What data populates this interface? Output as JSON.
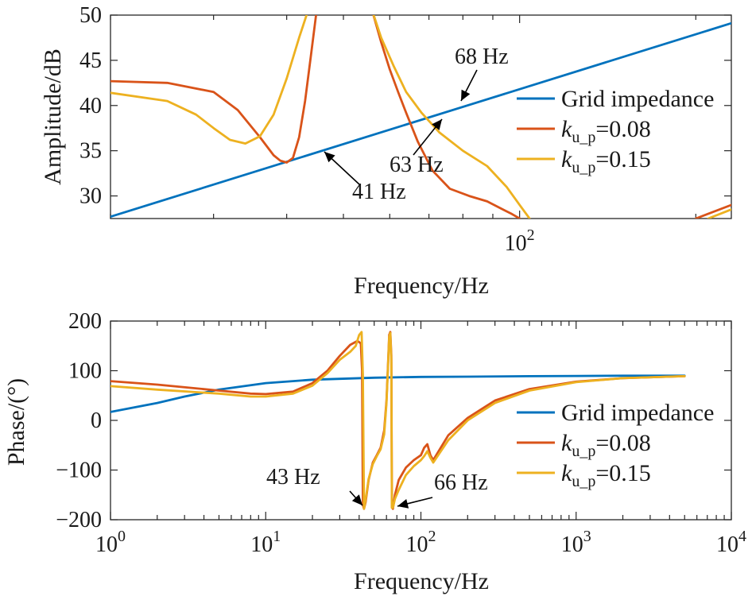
{
  "colors": {
    "grid": "#0072BD",
    "k008": "#D95319",
    "k015": "#EDB120",
    "axis": "#262626"
  },
  "chart_data": [
    {
      "type": "line",
      "xscale": "log",
      "xlim": [
        20,
        230
      ],
      "ylim": [
        27.5,
        50
      ],
      "xlabel": "Frequency/Hz",
      "ylabel": "Amplitude/dB",
      "xtick_labels": [
        {
          "x": 100,
          "base": "10",
          "exp": "2"
        }
      ],
      "ytick_labels": [
        "30",
        "35",
        "40",
        "45",
        "50"
      ],
      "ytick_values": [
        30,
        35,
        40,
        45,
        50
      ],
      "legend": {
        "placement": "right",
        "entries": [
          {
            "series": 0,
            "text": "Grid impedance"
          },
          {
            "series": 1,
            "prefix": "k",
            "sub": "u_p",
            "suffix": "=0.08"
          },
          {
            "series": 2,
            "prefix": "k",
            "sub": "u_p",
            "suffix": "=0.15"
          }
        ]
      },
      "annotations": [
        {
          "label": "41 Hz",
          "x": 41,
          "y": 35.4
        },
        {
          "label": "63 Hz",
          "x": 63,
          "y": 38.7
        },
        {
          "label": "68 Hz",
          "x": 68,
          "y": 39.3
        }
      ],
      "series": [
        {
          "color": "grid",
          "x": [
            20,
            230
          ],
          "y": [
            27.7,
            49.1
          ]
        },
        {
          "color": "k008",
          "x": [
            20,
            25,
            30,
            33,
            36,
            38,
            39,
            40,
            41,
            42,
            43,
            44,
            45
          ],
          "y": [
            42.7,
            42.5,
            41.5,
            39.5,
            36.5,
            34.5,
            33.9,
            33.7,
            34.2,
            36.5,
            40.5,
            45.5,
            50.5
          ]
        },
        {
          "color": "k008",
          "x": [
            56,
            58,
            60,
            62,
            64,
            67,
            71,
            76,
            82,
            88,
            93,
            97,
            100
          ],
          "y": [
            50.5,
            47,
            44,
            41.5,
            39.2,
            36,
            32.8,
            30.8,
            30,
            29.4,
            28.6,
            28,
            27.5
          ]
        },
        {
          "color": "k008",
          "x": [
            200,
            230
          ],
          "y": [
            27.5,
            29.0
          ]
        },
        {
          "color": "k015",
          "x": [
            20,
            25,
            28,
            30,
            32,
            34,
            36,
            38,
            40,
            42,
            43.5
          ],
          "y": [
            41.4,
            40.5,
            39,
            37.5,
            36.2,
            35.8,
            36.6,
            39,
            43,
            47.5,
            50.5
          ]
        },
        {
          "color": "k015",
          "x": [
            56,
            58,
            61,
            64,
            68,
            73,
            80,
            88,
            95,
            100,
            104
          ],
          "y": [
            50.5,
            47.5,
            44.3,
            41.5,
            39.2,
            37,
            35,
            33.3,
            31,
            29,
            27.5
          ]
        },
        {
          "color": "k015",
          "x": [
            210,
            230
          ],
          "y": [
            27.5,
            28.5
          ]
        }
      ]
    },
    {
      "type": "line",
      "xscale": "log",
      "xlim": [
        1,
        10000
      ],
      "ylim": [
        -200,
        200
      ],
      "xlabel": "Frequency/Hz",
      "ylabel": "Phase/(°)",
      "xtick_labels": [
        {
          "x": 1,
          "base": "10",
          "exp": "0"
        },
        {
          "x": 10,
          "base": "10",
          "exp": "1"
        },
        {
          "x": 100,
          "base": "10",
          "exp": "2"
        },
        {
          "x": 1000,
          "base": "10",
          "exp": "3"
        },
        {
          "x": 10000,
          "base": "10",
          "exp": "4"
        }
      ],
      "ytick_labels": [
        "200",
        "100",
        "0",
        "−100",
        "−200"
      ],
      "ytick_values": [
        200,
        100,
        0,
        -100,
        -200
      ],
      "legend": {
        "placement": "right",
        "entries": [
          {
            "series": 0,
            "text": "Grid impedance"
          },
          {
            "series": 1,
            "prefix": "k",
            "sub": "u_p",
            "suffix": "=0.08"
          },
          {
            "series": 2,
            "prefix": "k",
            "sub": "u_p",
            "suffix": "=0.15"
          }
        ]
      },
      "annotations": [
        {
          "label": "43 Hz",
          "x": 43,
          "y": -180
        },
        {
          "label": "66 Hz",
          "x": 66,
          "y": -180
        }
      ],
      "series": [
        {
          "color": "grid",
          "x": [
            1,
            2,
            3,
            5,
            10,
            20,
            50,
            100,
            200,
            500,
            1000,
            2000,
            5000
          ],
          "y": [
            17,
            35,
            48,
            62,
            75,
            82,
            86,
            87.5,
            88,
            89,
            89.5,
            90,
            90
          ]
        },
        {
          "color": "k008",
          "x": [
            1,
            2,
            5,
            8,
            10,
            15,
            20,
            25,
            30,
            35,
            39,
            41,
            41.8,
            42.3,
            43,
            44,
            46,
            49,
            52,
            55,
            58,
            60,
            61.5,
            62.5,
            63.5,
            64.5,
            65,
            66,
            68,
            72,
            80,
            90,
            100,
            105,
            110,
            115,
            120,
            150,
            200,
            300,
            500,
            1000,
            2000,
            5000
          ],
          "y": [
            79,
            72,
            60,
            54,
            53,
            58,
            75,
            100,
            130,
            152,
            160,
            155,
            100,
            -170,
            -178,
            -165,
            -120,
            -85,
            -70,
            -55,
            -20,
            40,
            120,
            172,
            178,
            130,
            -175,
            -178,
            -150,
            -120,
            -95,
            -80,
            -70,
            -55,
            -48,
            -70,
            -80,
            -30,
            5,
            40,
            63,
            78,
            85,
            89
          ]
        },
        {
          "color": "k015",
          "x": [
            1,
            2,
            5,
            8,
            10,
            15,
            20,
            25,
            30,
            35,
            38,
            40,
            41.5,
            42.3,
            43,
            44,
            46,
            49,
            52,
            55,
            58,
            60,
            61.5,
            62.5,
            63.5,
            64.5,
            65,
            66,
            68,
            72,
            80,
            90,
            100,
            105,
            110,
            115,
            120,
            150,
            200,
            300,
            500,
            1000,
            2000,
            5000
          ],
          "y": [
            69,
            62,
            54,
            48,
            48,
            54,
            70,
            95,
            122,
            138,
            150,
            172,
            178,
            90,
            -178,
            -160,
            -118,
            -88,
            -72,
            -58,
            -28,
            35,
            115,
            168,
            176,
            120,
            -176,
            -176,
            -158,
            -140,
            -110,
            -92,
            -80,
            -72,
            -62,
            -75,
            -85,
            -40,
            0,
            35,
            60,
            77,
            85,
            89
          ]
        }
      ]
    }
  ]
}
